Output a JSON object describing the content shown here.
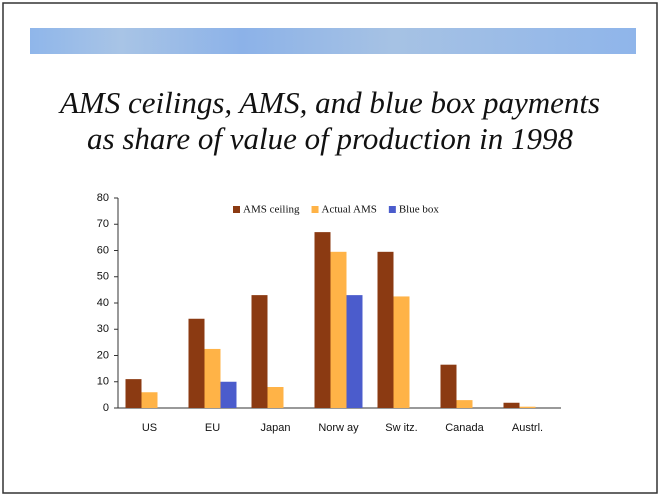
{
  "chart_data": {
    "type": "bar",
    "title": "AMS ceilings, AMS, and blue box payments",
    "subtitle": "as share of value of production in 1998",
    "categories": [
      "US",
      "EU",
      "Japan",
      "Norw ay",
      "Sw itz.",
      "Canada",
      "Austrl."
    ],
    "series": [
      {
        "name": "AMS ceiling",
        "color": "#8b3a12",
        "values": [
          11,
          34,
          43,
          67,
          59.5,
          16.5,
          2
        ]
      },
      {
        "name": "Actual AMS",
        "color": "#ffb347",
        "values": [
          6,
          22.5,
          8,
          59.5,
          42.5,
          3,
          0.5
        ]
      },
      {
        "name": "Blue box",
        "color": "#4b5ccc",
        "values": [
          null,
          10,
          null,
          43,
          null,
          null,
          null
        ]
      }
    ],
    "ylim": [
      0,
      80
    ],
    "yticks": [
      0,
      10,
      20,
      30,
      40,
      50,
      60,
      70,
      80
    ],
    "grid": false,
    "legend": "top"
  }
}
